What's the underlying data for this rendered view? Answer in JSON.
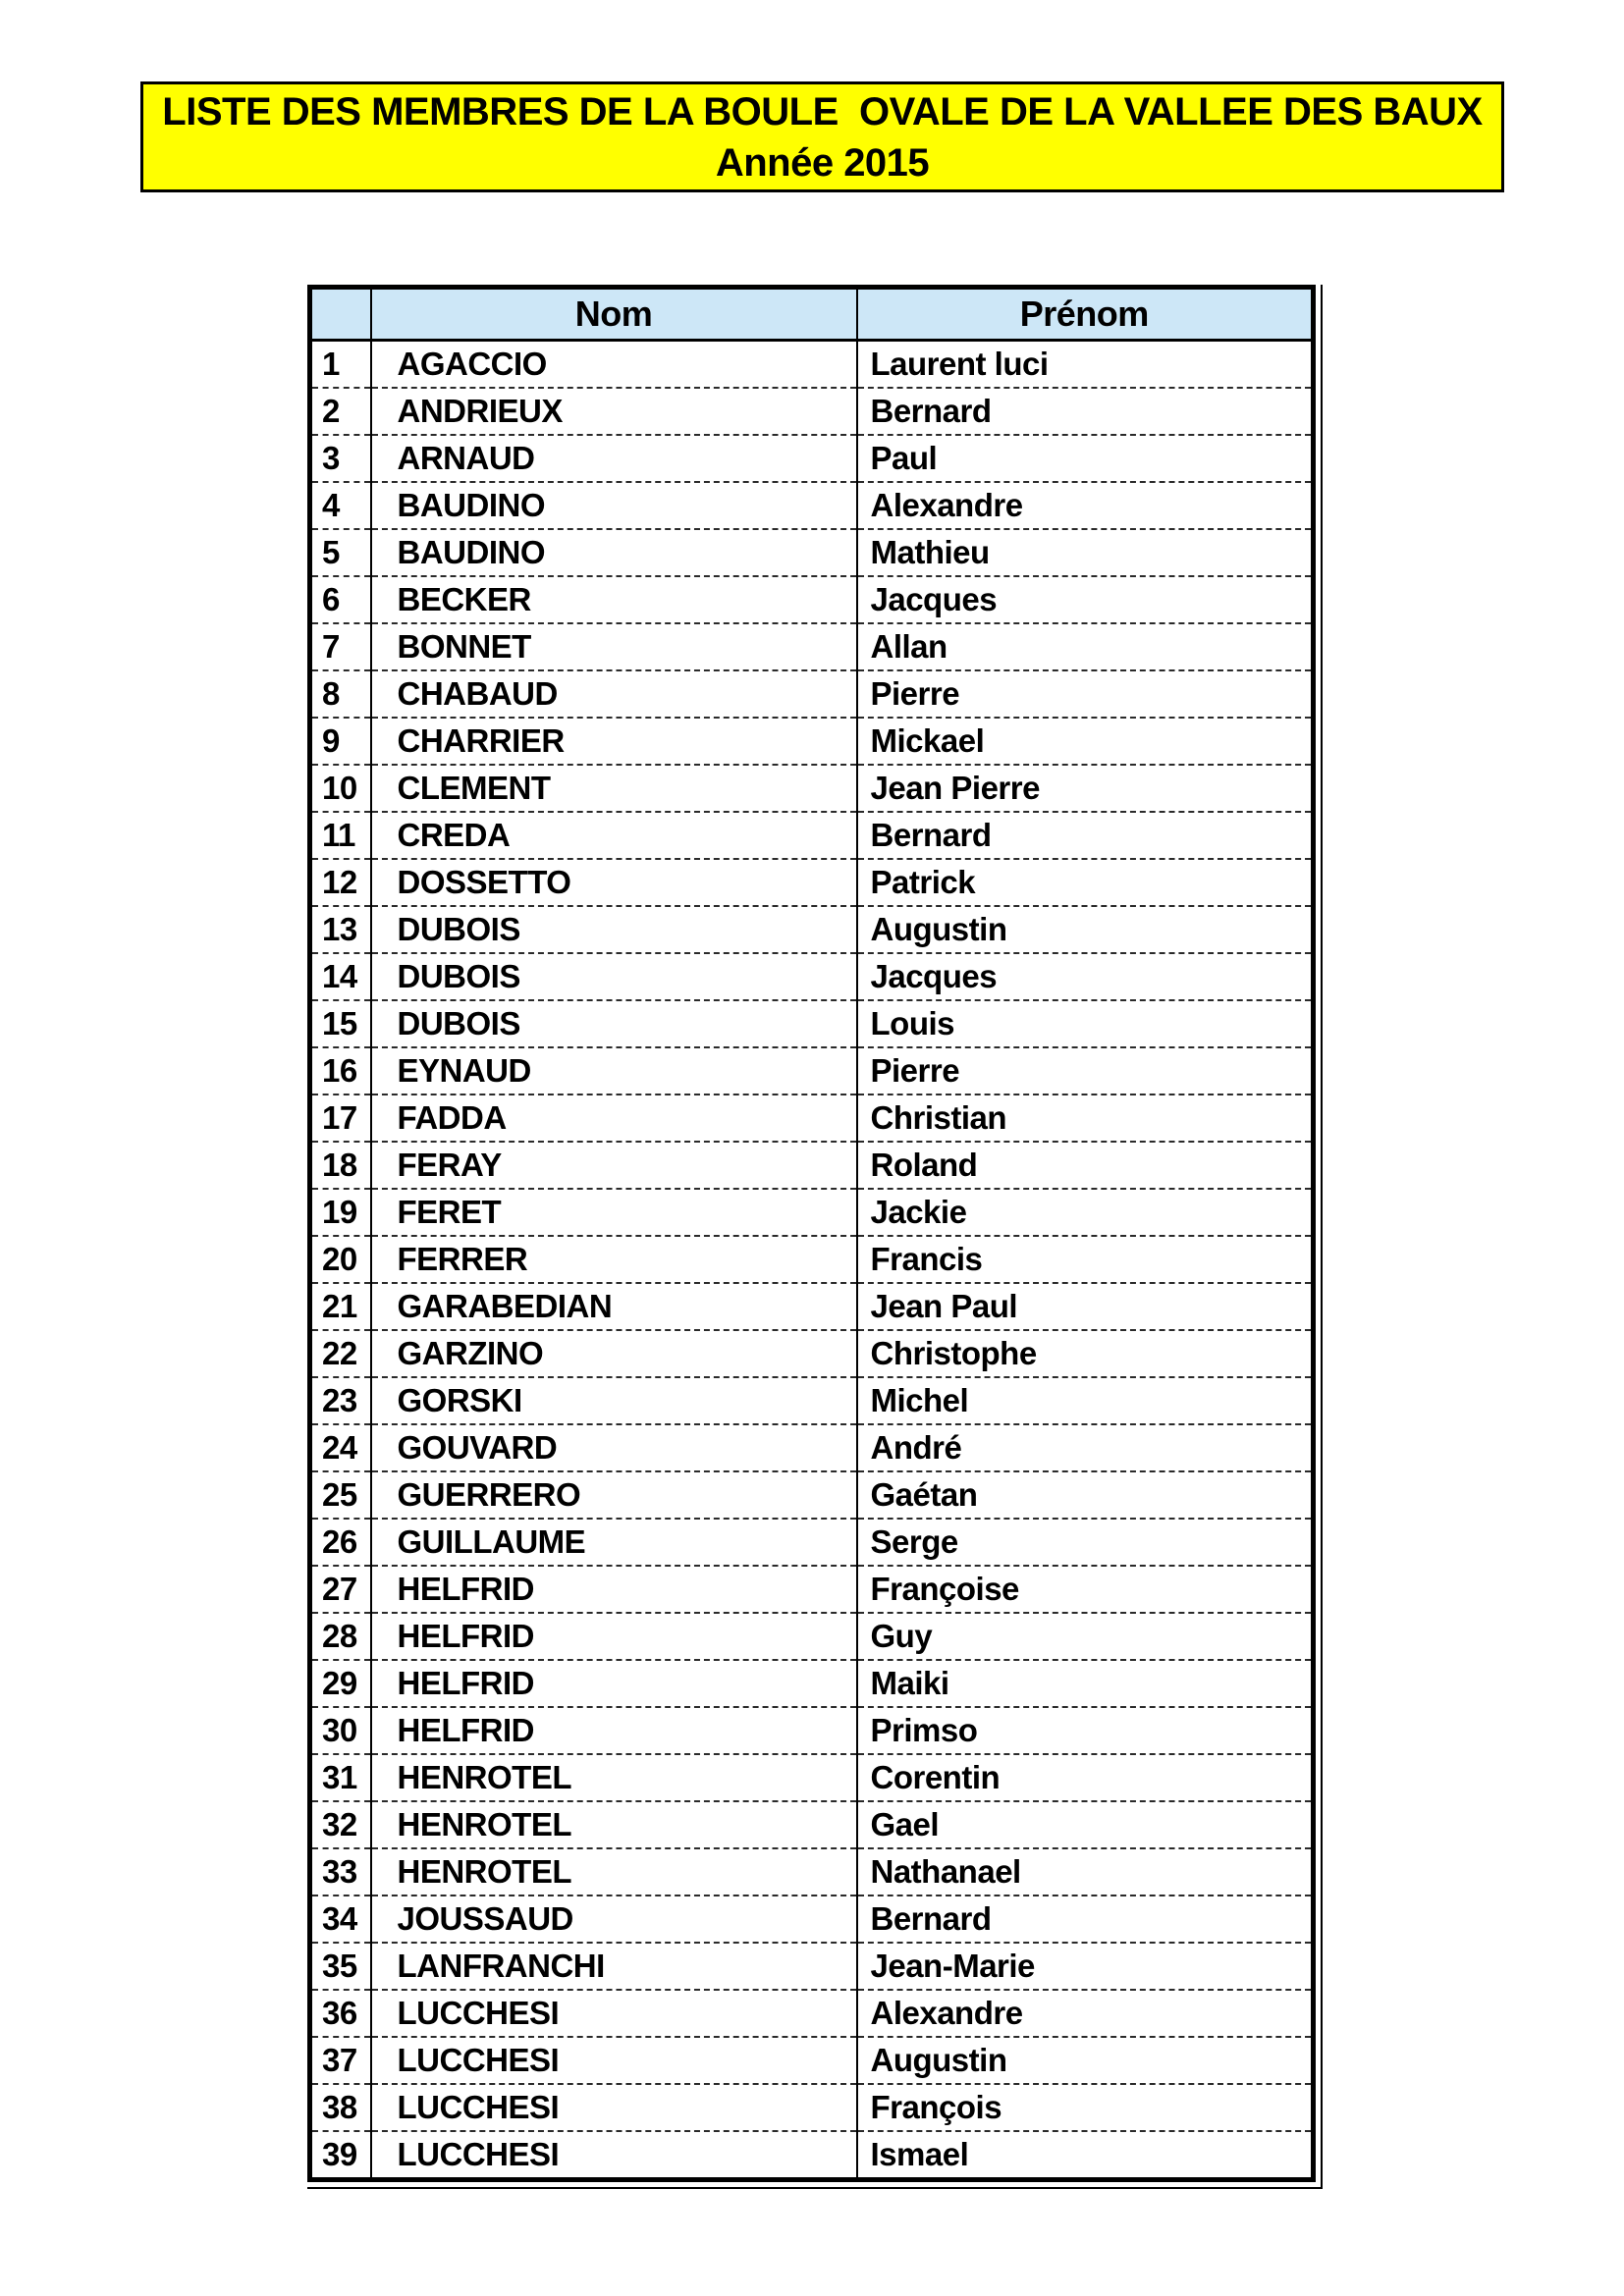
{
  "banner": {
    "title_line1": "LISTE DES MEMBRES DE LA BOULE  OVALE DE LA VALLEE DES BAUX",
    "title_line2": "Année 2015"
  },
  "table": {
    "columns": [
      "",
      "Nom",
      "Prénom"
    ],
    "rows": [
      [
        "1",
        "AGACCIO",
        "Laurent luci"
      ],
      [
        "2",
        "ANDRIEUX",
        "Bernard"
      ],
      [
        "3",
        "ARNAUD",
        "Paul"
      ],
      [
        "4",
        "BAUDINO",
        "Alexandre"
      ],
      [
        "5",
        "BAUDINO",
        "Mathieu"
      ],
      [
        "6",
        "BECKER",
        "Jacques"
      ],
      [
        "7",
        "BONNET",
        "Allan"
      ],
      [
        "8",
        "CHABAUD",
        "Pierre"
      ],
      [
        "9",
        "CHARRIER",
        "Mickael"
      ],
      [
        "10",
        "CLEMENT",
        "Jean Pierre"
      ],
      [
        "11",
        "CREDA",
        "Bernard"
      ],
      [
        "12",
        "DOSSETTO",
        "Patrick"
      ],
      [
        "13",
        "DUBOIS",
        "Augustin"
      ],
      [
        "14",
        "DUBOIS",
        "Jacques"
      ],
      [
        "15",
        "DUBOIS",
        "Louis"
      ],
      [
        "16",
        "EYNAUD",
        "Pierre"
      ],
      [
        "17",
        "FADDA",
        "Christian"
      ],
      [
        "18",
        "FERAY",
        "Roland"
      ],
      [
        "19",
        "FERET",
        "Jackie"
      ],
      [
        "20",
        "FERRER",
        "Francis"
      ],
      [
        "21",
        "GARABEDIAN",
        "Jean Paul"
      ],
      [
        "22",
        "GARZINO",
        "Christophe"
      ],
      [
        "23",
        "GORSKI",
        "Michel"
      ],
      [
        "24",
        "GOUVARD",
        "André"
      ],
      [
        "25",
        "GUERRERO",
        "Gaétan"
      ],
      [
        "26",
        "GUILLAUME",
        "Serge"
      ],
      [
        "27",
        "HELFRID",
        "Françoise"
      ],
      [
        "28",
        "HELFRID",
        "Guy"
      ],
      [
        "29",
        "HELFRID",
        "Maiki"
      ],
      [
        "30",
        "HELFRID",
        "Primso"
      ],
      [
        "31",
        "HENROTEL",
        "Corentin"
      ],
      [
        "32",
        "HENROTEL",
        "Gael"
      ],
      [
        "33",
        "HENROTEL",
        "Nathanael"
      ],
      [
        "34",
        "JOUSSAUD",
        "Bernard"
      ],
      [
        "35",
        "LANFRANCHI",
        "Jean-Marie"
      ],
      [
        "36",
        "LUCCHESI",
        "Alexandre"
      ],
      [
        "37",
        "LUCCHESI",
        "Augustin"
      ],
      [
        "38",
        "LUCCHESI",
        "François"
      ],
      [
        "39",
        "LUCCHESI",
        "Ismael"
      ]
    ]
  },
  "colors": {
    "banner_background": "#ffff00",
    "header_background": "#cde7f7",
    "text": "#000000",
    "page_background": "#ffffff"
  }
}
